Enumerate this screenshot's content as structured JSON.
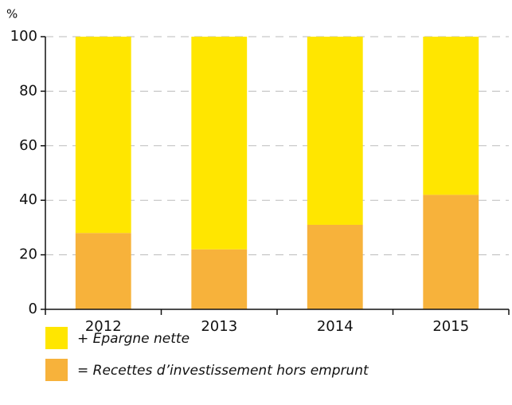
{
  "chart_data": {
    "type": "stacked_bar",
    "y_label": "%",
    "categories": [
      "2012",
      "2013",
      "2014",
      "2015"
    ],
    "series": [
      {
        "name": "+ Épargne nette",
        "color": "#ffe600",
        "values": [
          72,
          78,
          69,
          58
        ]
      },
      {
        "name": "= Recettes d’investissement hors emprunt",
        "color": "#f7b23b",
        "values": [
          28,
          22,
          31,
          42
        ]
      }
    ],
    "ylim": [
      0,
      100
    ],
    "yticks": [
      0,
      20,
      40,
      60,
      80,
      100
    ],
    "grid": true
  }
}
